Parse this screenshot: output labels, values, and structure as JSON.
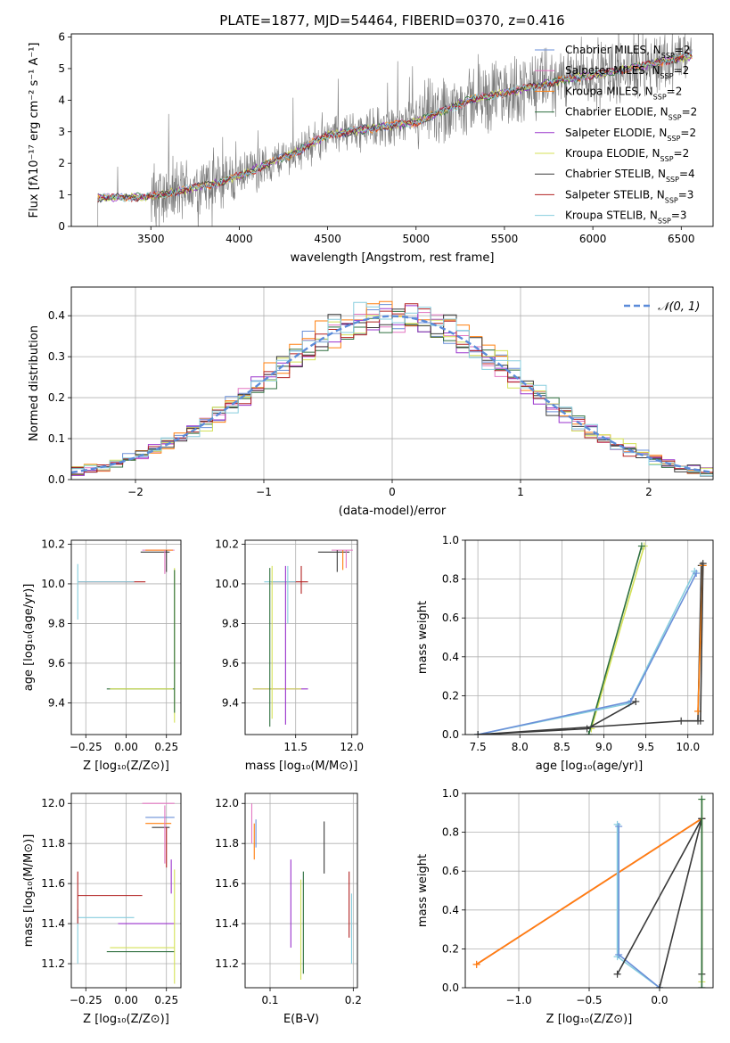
{
  "chart_data": [
    {
      "id": "spectrum",
      "type": "line",
      "title": "PLATE=1877, MJD=54464, FIBERID=0370, z=0.416",
      "xlabel": "wavelength [Angstrom, rest frame]",
      "ylabel": "Flux [fλ10⁻¹⁷ erg cm⁻² s⁻¹ A⁻¹]",
      "xlim": [
        3050,
        6680
      ],
      "ylim": [
        0,
        6.1
      ],
      "xticks": [
        3500,
        4000,
        4500,
        5000,
        5500,
        6000,
        6500
      ],
      "yticks": [
        0,
        1,
        2,
        3,
        4,
        5,
        6
      ],
      "grid": false,
      "legend_position": "top-right",
      "continuum_model": {
        "x": [
          3200,
          3500,
          3900,
          4000,
          4300,
          4500,
          4860,
          5000,
          5300,
          5800,
          6000,
          6200,
          6550
        ],
        "y": [
          0.9,
          0.95,
          1.4,
          1.6,
          2.3,
          2.9,
          3.2,
          3.3,
          4.0,
          4.6,
          4.8,
          5.0,
          5.4
        ]
      },
      "series": [
        {
          "name": "Chabrier MILES, N_SSP=2",
          "color": "#6a8fd8"
        },
        {
          "name": "Salpeter MILES, N_SSP=2",
          "color": "#e377c2"
        },
        {
          "name": "Kroupa MILES, N_SSP=2",
          "color": "#ff7f0e"
        },
        {
          "name": "Chabrier ELODIE, N_SSP=2",
          "color": "#2e6f3f"
        },
        {
          "name": "Salpeter ELODIE, N_SSP=2",
          "color": "#9932cc"
        },
        {
          "name": "Kroupa ELODIE, N_SSP=2",
          "color": "#d4e157"
        },
        {
          "name": "Chabrier STELIB, N_SSP=4",
          "color": "#3a3a3a"
        },
        {
          "name": "Salpeter STELIB, N_SSP=3",
          "color": "#b22222"
        },
        {
          "name": "Kroupa STELIB, N_SSP=3",
          "color": "#87cede"
        }
      ]
    },
    {
      "id": "residuals",
      "type": "line",
      "xlabel": "(data-model)/error",
      "ylabel": "Normed distribution",
      "xlim": [
        -2.5,
        2.5
      ],
      "ylim": [
        0,
        0.47
      ],
      "xticks": [
        -2,
        -1,
        0,
        1,
        2
      ],
      "yticks": [
        0.0,
        0.1,
        0.2,
        0.3,
        0.4
      ],
      "grid": true,
      "legend_position": "top-right",
      "legend": "𝒩(0, 1)",
      "normal_curve": {
        "mean": 0,
        "sigma": 1,
        "color": "#5b8bd9"
      },
      "histogram_bin_width": 0.1
    },
    {
      "id": "age-vs-Z",
      "type": "scatter",
      "xlabel": "Z [log₁₀(Z/Z⊙)]",
      "ylabel": "age  [log₁₀(age/yr)]",
      "xlim": [
        -0.34,
        0.34
      ],
      "ylim": [
        9.24,
        10.22
      ],
      "xticks": [
        -0.25,
        0.0,
        0.25
      ],
      "yticks": [
        9.4,
        9.6,
        9.8,
        10.0,
        10.2
      ],
      "grid": true,
      "hbars": [
        {
          "y": 10.17,
          "x0": 0.1,
          "x1": 0.3,
          "color": "#e377c2"
        },
        {
          "y": 10.17,
          "x0": 0.12,
          "x1": 0.29,
          "color": "#ff7f0e"
        },
        {
          "y": 10.16,
          "x0": 0.09,
          "x1": 0.27,
          "color": "#3a3a3a"
        },
        {
          "y": 10.01,
          "x0": -0.3,
          "x1": 0.12,
          "color": "#b22222"
        },
        {
          "y": 10.01,
          "x0": -0.3,
          "x1": 0.05,
          "color": "#87cede"
        },
        {
          "y": 9.47,
          "x0": -0.12,
          "x1": 0.3,
          "color": "#2e6f3f"
        },
        {
          "y": 9.47,
          "x0": -0.1,
          "x1": 0.29,
          "color": "#d4e157"
        }
      ],
      "vbars": [
        {
          "x": 0.24,
          "y0": 10.05,
          "y1": 10.17,
          "color": "#e377c2"
        },
        {
          "x": 0.25,
          "y0": 10.06,
          "y1": 10.17,
          "color": "#3a3a3a"
        },
        {
          "x": 0.3,
          "y0": 9.3,
          "y1": 10.08,
          "color": "#d4e157"
        },
        {
          "x": 0.3,
          "y0": 9.35,
          "y1": 10.07,
          "color": "#2e6f3f"
        },
        {
          "x": -0.3,
          "y0": 9.82,
          "y1": 10.1,
          "color": "#87cede"
        }
      ]
    },
    {
      "id": "age-vs-mass",
      "type": "scatter",
      "xlabel": "mass [log₁₀(M/M⊙)]",
      "ylabel": "",
      "xlim": [
        11.05,
        12.05
      ],
      "ylim": [
        9.24,
        10.22
      ],
      "xticks": [
        11.5,
        12.0
      ],
      "yticks": [
        9.4,
        9.6,
        9.8,
        10.0,
        10.2
      ],
      "grid": true,
      "hbars": [
        {
          "y": 10.17,
          "x0": 11.82,
          "x1": 12.01,
          "color": "#e377c2"
        },
        {
          "y": 10.16,
          "x0": 11.7,
          "x1": 11.98,
          "color": "#3a3a3a"
        },
        {
          "y": 10.01,
          "x0": 11.28,
          "x1": 11.61,
          "color": "#b22222"
        },
        {
          "y": 10.01,
          "x0": 11.22,
          "x1": 11.5,
          "color": "#87cede"
        },
        {
          "y": 9.47,
          "x0": 11.12,
          "x1": 11.61,
          "color": "#9932cc"
        },
        {
          "y": 9.47,
          "x0": 11.12,
          "x1": 11.55,
          "color": "#d4e157"
        }
      ],
      "vbars": [
        {
          "x": 11.27,
          "y0": 9.28,
          "y1": 10.08,
          "color": "#2e6f3f"
        },
        {
          "x": 11.29,
          "y0": 9.32,
          "y1": 10.09,
          "color": "#d4e157"
        },
        {
          "x": 11.41,
          "y0": 9.29,
          "y1": 10.09,
          "color": "#9932cc"
        },
        {
          "x": 11.43,
          "y0": 9.8,
          "y1": 10.09,
          "color": "#87cede"
        },
        {
          "x": 11.55,
          "y0": 9.95,
          "y1": 10.09,
          "color": "#b22222"
        },
        {
          "x": 11.87,
          "y0": 10.06,
          "y1": 10.17,
          "color": "#3a3a3a"
        },
        {
          "x": 11.92,
          "y0": 10.07,
          "y1": 10.17,
          "color": "#ff7f0e"
        },
        {
          "x": 11.95,
          "y0": 10.08,
          "y1": 10.17,
          "color": "#e377c2"
        }
      ]
    },
    {
      "id": "massweight-vs-age",
      "type": "line",
      "xlabel": "age  [log₁₀(age/yr)]",
      "ylabel": "mass weight",
      "xlim": [
        7.35,
        10.3
      ],
      "ylim": [
        0,
        1.0
      ],
      "xticks": [
        7.5,
        8.0,
        8.5,
        9.0,
        9.5,
        10.0
      ],
      "yticks": [
        0.0,
        0.2,
        0.4,
        0.6,
        0.8,
        1.0
      ],
      "grid": true,
      "series": [
        {
          "color": "#d4e157",
          "x": [
            8.85,
            9.48
          ],
          "y": [
            0.03,
            0.97
          ]
        },
        {
          "color": "#2e6f3f",
          "x": [
            8.82,
            9.45
          ],
          "y": [
            0.0,
            0.97
          ]
        },
        {
          "color": "#87cede",
          "x": [
            7.5,
            9.3,
            10.08
          ],
          "y": [
            0.0,
            0.16,
            0.84
          ]
        },
        {
          "color": "#6a8fd8",
          "x": [
            7.5,
            9.32,
            10.1
          ],
          "y": [
            0.0,
            0.17,
            0.83
          ]
        },
        {
          "color": "#3a3a3a",
          "x": [
            7.5,
            9.92,
            10.12,
            10.16
          ],
          "y": [
            0.0,
            0.07,
            0.07,
            0.87
          ]
        },
        {
          "color": "#3a3a3a",
          "x": [
            7.5,
            8.8,
            9.38
          ],
          "y": [
            0.0,
            0.03,
            0.17
          ]
        },
        {
          "color": "#ff7f0e",
          "x": [
            10.12,
            10.18
          ],
          "y": [
            0.12,
            0.87
          ]
        },
        {
          "color": "#3a3a3a",
          "x": [
            10.15,
            10.18
          ],
          "y": [
            0.07,
            0.88
          ]
        }
      ]
    },
    {
      "id": "mass-vs-Z",
      "type": "scatter",
      "xlabel": "Z [log₁₀(Z/Z⊙)]",
      "ylabel": "mass [log₁₀(M/M⊙)]",
      "xlim": [
        -0.34,
        0.34
      ],
      "ylim": [
        11.08,
        12.05
      ],
      "xticks": [
        -0.25,
        0.0,
        0.25
      ],
      "yticks": [
        11.2,
        11.4,
        11.6,
        11.8,
        12.0
      ],
      "grid": true,
      "hbars": [
        {
          "y": 12.0,
          "x0": 0.1,
          "x1": 0.3,
          "color": "#e377c2"
        },
        {
          "y": 11.93,
          "x0": 0.12,
          "x1": 0.3,
          "color": "#6a8fd8"
        },
        {
          "y": 11.9,
          "x0": 0.12,
          "x1": 0.28,
          "color": "#ff7f0e"
        },
        {
          "y": 11.88,
          "x0": 0.16,
          "x1": 0.27,
          "color": "#3a3a3a"
        },
        {
          "y": 11.54,
          "x0": -0.3,
          "x1": 0.1,
          "color": "#b22222"
        },
        {
          "y": 11.43,
          "x0": -0.3,
          "x1": 0.05,
          "color": "#87cede"
        },
        {
          "y": 11.4,
          "x0": -0.05,
          "x1": 0.3,
          "color": "#9932cc"
        },
        {
          "y": 11.28,
          "x0": -0.1,
          "x1": 0.3,
          "color": "#d4e157"
        },
        {
          "y": 11.26,
          "x0": -0.12,
          "x1": 0.3,
          "color": "#2e6f3f"
        }
      ],
      "vbars": [
        {
          "x": 0.24,
          "y0": 11.7,
          "y1": 11.99,
          "color": "#e377c2"
        },
        {
          "x": 0.25,
          "y0": 11.68,
          "y1": 11.88,
          "color": "#b22222"
        },
        {
          "x": 0.28,
          "y0": 11.55,
          "y1": 11.72,
          "color": "#9932cc"
        },
        {
          "x": 0.3,
          "y0": 11.1,
          "y1": 11.67,
          "color": "#d4e157"
        },
        {
          "x": -0.3,
          "y0": 11.2,
          "y1": 11.47,
          "color": "#87cede"
        },
        {
          "x": -0.3,
          "y0": 11.4,
          "y1": 11.66,
          "color": "#b22222"
        }
      ]
    },
    {
      "id": "mass-vs-EBV",
      "type": "scatter",
      "xlabel": "E(B-V)",
      "ylabel": "",
      "xlim": [
        0.07,
        0.205
      ],
      "ylim": [
        11.08,
        12.05
      ],
      "xticks": [
        0.1,
        0.2
      ],
      "yticks": [
        11.2,
        11.4,
        11.6,
        11.8,
        12.0
      ],
      "grid": true,
      "vbars": [
        {
          "x": 0.078,
          "y0": 11.8,
          "y1": 12.0,
          "color": "#e377c2"
        },
        {
          "x": 0.081,
          "y0": 11.72,
          "y1": 11.9,
          "color": "#ff7f0e"
        },
        {
          "x": 0.083,
          "y0": 11.78,
          "y1": 11.92,
          "color": "#6a8fd8"
        },
        {
          "x": 0.125,
          "y0": 11.28,
          "y1": 11.72,
          "color": "#9932cc"
        },
        {
          "x": 0.137,
          "y0": 11.12,
          "y1": 11.62,
          "color": "#d4e157"
        },
        {
          "x": 0.14,
          "y0": 11.15,
          "y1": 11.66,
          "color": "#2e6f3f"
        },
        {
          "x": 0.165,
          "y0": 11.65,
          "y1": 11.91,
          "color": "#3a3a3a"
        },
        {
          "x": 0.195,
          "y0": 11.33,
          "y1": 11.66,
          "color": "#b22222"
        },
        {
          "x": 0.198,
          "y0": 11.2,
          "y1": 11.55,
          "color": "#87cede"
        }
      ]
    },
    {
      "id": "massweight-vs-Z",
      "type": "line",
      "xlabel": "Z [log₁₀(Z/Z⊙)]",
      "ylabel": "mass weight",
      "xlim": [
        -1.38,
        0.38
      ],
      "ylim": [
        0,
        1.0
      ],
      "xticks": [
        -1.0,
        -0.5,
        0.0
      ],
      "yticks": [
        0.0,
        0.2,
        0.4,
        0.6,
        0.8,
        1.0
      ],
      "grid": true,
      "series": [
        {
          "color": "#e377c2",
          "x": [
            -1.3,
            0.3
          ],
          "y": [
            0.12,
            0.87
          ]
        },
        {
          "color": "#ff7f0e",
          "x": [
            -1.3,
            0.3
          ],
          "y": [
            0.12,
            0.87
          ]
        },
        {
          "color": "#87cede",
          "x": [
            -0.3,
            -0.3,
            0.0
          ],
          "y": [
            0.84,
            0.16,
            0.0
          ]
        },
        {
          "color": "#6a8fd8",
          "x": [
            -0.29,
            -0.29,
            0.0
          ],
          "y": [
            0.83,
            0.17,
            0.0
          ]
        },
        {
          "color": "#3a3a3a",
          "x": [
            -0.3,
            0.3,
            0.0,
            0.3,
            0.3
          ],
          "y": [
            0.07,
            0.87,
            0.0,
            0.87,
            0.07
          ]
        },
        {
          "color": "#d4e157",
          "x": [
            0.3,
            0.3
          ],
          "y": [
            0.03,
            0.97
          ]
        },
        {
          "color": "#2e6f3f",
          "x": [
            0.3,
            0.3
          ],
          "y": [
            0.0,
            0.97
          ]
        }
      ]
    }
  ]
}
